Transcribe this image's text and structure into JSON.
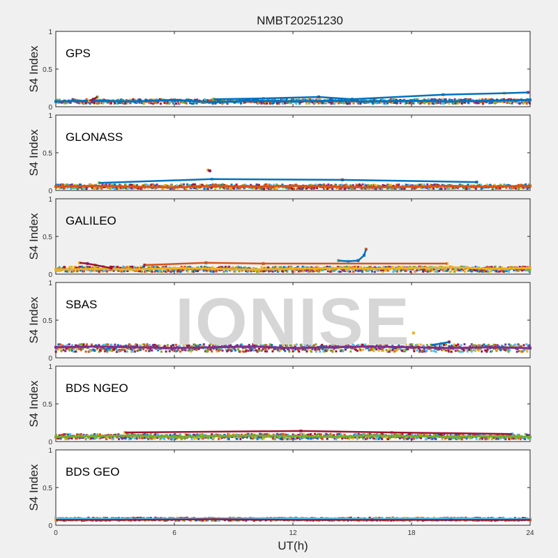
{
  "chart_data": {
    "type": "scatter",
    "title": "NMBT20251230",
    "xlabel": "UT(h)",
    "xlim": [
      0,
      24
    ],
    "xticks": [
      "0",
      "6",
      "12",
      "18",
      "24"
    ],
    "watermark": "IONISE",
    "series_colors": [
      "#0072BD",
      "#D95319",
      "#EDB120",
      "#7E2F8E",
      "#77AC30",
      "#4DBEEE",
      "#A2142F"
    ],
    "panels": [
      {
        "name": "GPS",
        "ylabel": "S4 Index",
        "ylim": [
          0,
          1
        ],
        "yticks": [
          "0",
          "0.5",
          "1"
        ],
        "background": "#ffffff",
        "baseline_range": [
          0.04,
          0.1
        ],
        "series": [
          {
            "x": [
              0,
              2,
              4,
              6,
              8,
              10,
              12,
              14,
              16,
              18,
              20,
              22,
              24
            ],
            "y": [
              0.07,
              0.08,
              0.07,
              0.09,
              0.06,
              0.08,
              0.07,
              0.08,
              0.07,
              0.08,
              0.07,
              0.08,
              0.09
            ]
          },
          {
            "x": [
              1.7,
              1.9,
              2.1
            ],
            "y": [
              0.08,
              0.1,
              0.13
            ]
          },
          {
            "x": [
              8,
              10.5,
              13.3,
              15,
              19.6,
              22.7,
              23.9
            ],
            "y": [
              0.1,
              0.11,
              0.13,
              0.1,
              0.16,
              0.18,
              0.19
            ]
          }
        ]
      },
      {
        "name": "GLONASS",
        "ylabel": "S4 Index",
        "ylim": [
          0,
          1
        ],
        "yticks": [
          "0",
          "0.5",
          "1"
        ],
        "background": "#ffffff",
        "baseline_range": [
          0.02,
          0.08
        ],
        "series": [
          {
            "x": [
              0,
              2,
              4,
              6,
              8,
              10,
              12,
              14,
              16,
              18,
              20,
              22,
              24
            ],
            "y": [
              0.05,
              0.06,
              0.05,
              0.04,
              0.06,
              0.05,
              0.06,
              0.05,
              0.04,
              0.05,
              0.06,
              0.05,
              0.06
            ]
          },
          {
            "x": [
              7.7,
              7.8
            ],
            "y": [
              0.27,
              0.26
            ]
          },
          {
            "x": [
              2.2,
              7.9,
              14.5,
              21.3
            ],
            "y": [
              0.1,
              0.15,
              0.14,
              0.11
            ]
          }
        ]
      },
      {
        "name": "GALILEO",
        "ylabel": "S4 Index",
        "ylim": [
          0,
          1
        ],
        "yticks": [
          "0",
          "0.5",
          "1"
        ],
        "background": "#f0f0f0",
        "baseline_range": [
          0.03,
          0.1
        ],
        "series": [
          {
            "x": [
              0,
              2,
              4,
              6,
              8,
              10,
              12,
              14,
              16,
              18,
              20,
              22,
              24
            ],
            "y": [
              0.06,
              0.07,
              0.06,
              0.08,
              0.07,
              0.06,
              0.07,
              0.08,
              0.07,
              0.08,
              0.09,
              0.07,
              0.08
            ]
          },
          {
            "x": [
              1.2,
              1.6,
              2.0,
              2.4,
              2.8
            ],
            "y": [
              0.15,
              0.14,
              0.12,
              0.1,
              0.08
            ]
          },
          {
            "x": [
              14.3,
              14.8,
              15.3,
              15.6,
              15.7
            ],
            "y": [
              0.18,
              0.17,
              0.18,
              0.25,
              0.33
            ]
          },
          {
            "x": [
              4.5,
              7.6,
              10.5,
              19.8
            ],
            "y": [
              0.12,
              0.15,
              0.14,
              0.14
            ]
          }
        ]
      },
      {
        "name": "SBAS",
        "ylabel": "S4 Index",
        "ylim": [
          0,
          1
        ],
        "yticks": [
          "0",
          "0.5",
          "1"
        ],
        "background": "#ffffff",
        "baseline_range": [
          0.08,
          0.18
        ],
        "series": [
          {
            "x": [
              0,
              2,
              4,
              6,
              8,
              10,
              12,
              14,
              16,
              18,
              20,
              22,
              24
            ],
            "y": [
              0.14,
              0.15,
              0.14,
              0.13,
              0.14,
              0.15,
              0.13,
              0.14,
              0.15,
              0.14,
              0.13,
              0.14,
              0.13
            ]
          },
          {
            "x": [
              18.1
            ],
            "y": [
              0.33
            ]
          },
          {
            "x": [
              19.0,
              19.5,
              19.9
            ],
            "y": [
              0.17,
              0.19,
              0.21
            ]
          }
        ]
      },
      {
        "name": "BDS NGEO",
        "ylabel": "S4 Index",
        "ylim": [
          0,
          1
        ],
        "yticks": [
          "0",
          "0.5",
          "1"
        ],
        "background": "#ffffff",
        "baseline_range": [
          0.03,
          0.1
        ],
        "series": [
          {
            "x": [
              0,
              2,
              4,
              6,
              8,
              10,
              12,
              14,
              16,
              18,
              20,
              22,
              24
            ],
            "y": [
              0.06,
              0.07,
              0.08,
              0.06,
              0.07,
              0.08,
              0.07,
              0.06,
              0.08,
              0.07,
              0.06,
              0.07,
              0.06
            ]
          },
          {
            "x": [
              3.5,
              12.4,
              17.0,
              23.1
            ],
            "y": [
              0.12,
              0.14,
              0.12,
              0.1
            ]
          }
        ]
      },
      {
        "name": "BDS GEO",
        "ylabel": "S4 Index",
        "ylim": [
          0,
          1
        ],
        "yticks": [
          "0",
          "0.5",
          "1"
        ],
        "background": "#ffffff",
        "baseline_range": [
          0.06,
          0.1
        ],
        "series": [
          {
            "x": [
              0,
              4,
              8,
              12,
              16,
              20,
              24
            ],
            "y": [
              0.09,
              0.08,
              0.09,
              0.09,
              0.08,
              0.09,
              0.08
            ]
          },
          {
            "x": [
              0,
              4,
              8,
              12,
              16,
              20,
              24
            ],
            "y": [
              0.07,
              0.07,
              0.08,
              0.07,
              0.07,
              0.07,
              0.07
            ]
          }
        ]
      }
    ]
  }
}
